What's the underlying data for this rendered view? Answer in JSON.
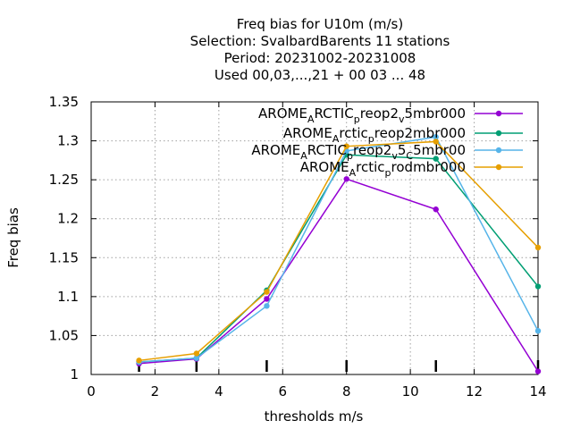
{
  "chart_data": {
    "type": "line",
    "title_lines": [
      "Freq bias  for U10m (m/s)",
      "Selection: SvalbardBarents      11 stations",
      "Period: 20231002-20231008",
      "Used  00,03,...,21  + 00 03 ... 48"
    ],
    "xlabel": "thresholds m/s",
    "ylabel": "Freq bias",
    "xlim": [
      0,
      14
    ],
    "ylim": [
      1,
      1.35
    ],
    "xticks": [
      0,
      2,
      4,
      6,
      8,
      10,
      12,
      14
    ],
    "yticks": [
      1,
      1.05,
      1.1,
      1.15,
      1.2,
      1.25,
      1.3,
      1.35
    ],
    "ytick_labels": [
      "1",
      "1.05",
      "1.1",
      "1.15",
      "1.2",
      "1.25",
      "1.3",
      "1.35"
    ],
    "grid": true,
    "legend_position": "top-right",
    "threshold_markers": [
      1.5,
      3.3,
      5.5,
      8,
      10.8,
      14
    ],
    "x": [
      1.5,
      3.3,
      5.5,
      8,
      10.8,
      14
    ],
    "series": [
      {
        "legend": {
          "base": "AROME",
          "parts": [
            [
              "A",
              "RCTIC"
            ],
            [
              "p",
              "reop2"
            ],
            [
              "v",
              "5mbr000"
            ]
          ]
        },
        "color": "#9400d3",
        "values": [
          1.014,
          1.02,
          1.097,
          1.251,
          1.212,
          1.004
        ]
      },
      {
        "legend": {
          "base": "AROME",
          "parts": [
            [
              "A",
              "rctic"
            ],
            [
              "p",
              "reop2mbr000"
            ]
          ]
        },
        "color": "#009e73",
        "values": [
          1.016,
          1.021,
          1.108,
          1.282,
          1.277,
          1.113
        ]
      },
      {
        "legend": {
          "base": "AROME",
          "parts": [
            [
              "A",
              "RCTIC"
            ],
            [
              "p",
              "reop2"
            ],
            [
              "v",
              "5"
            ],
            [
              "C",
              "5mbr00"
            ]
          ]
        },
        "color": "#56b4e9",
        "values": [
          1.016,
          1.021,
          1.088,
          1.287,
          1.305,
          1.056
        ]
      },
      {
        "legend": {
          "base": "AROME",
          "parts": [
            [
              "A",
              "rctic"
            ],
            [
              "p",
              "rodmbr000"
            ]
          ]
        },
        "color": "#e69f00",
        "values": [
          1.018,
          1.027,
          1.106,
          1.293,
          1.299,
          1.163
        ]
      }
    ]
  }
}
